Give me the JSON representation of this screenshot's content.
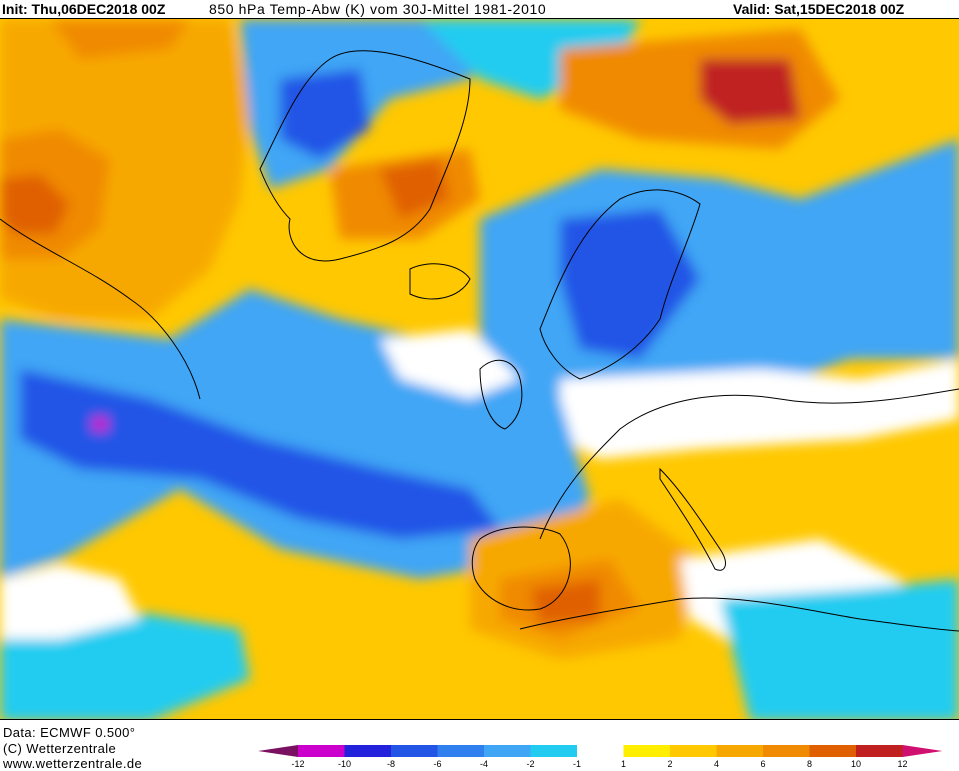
{
  "header": {
    "init": "Init: Thu,06DEC2018 00Z",
    "title": "850 hPa Temp-Abw (K) vom 30J-Mittel 1981-2010",
    "valid": "Valid: Sat,15DEC2018 00Z"
  },
  "footer": {
    "data_source": "Data: ECMWF  0.500°",
    "copyright": "(C) Wetterzentrale",
    "website": "www.wetterzentrale.de"
  },
  "legend": {
    "labels": [
      "-12",
      "-10",
      "-8",
      "-6",
      "-4",
      "-2",
      "-1",
      "1",
      "2",
      "4",
      "6",
      "8",
      "10",
      "12"
    ],
    "colors": [
      "#cc00cc",
      "#2222dd",
      "#2255e6",
      "#2f80ee",
      "#3fa6f5",
      "#22ccf0",
      "#ffffff",
      "#ffee00",
      "#ffc800",
      "#f7a800",
      "#f08a00",
      "#e06000",
      "#c02020"
    ],
    "low_arrow_color": "#7a1060",
    "high_arrow_color": "#d01070"
  },
  "map": {
    "region": "North Atlantic and Europe",
    "palette": {
      "strong_cold": "#cc00cc",
      "very_cold": "#2255e6",
      "cold": "#3fa6f5",
      "cool": "#22ccf0",
      "neutral": "#ffffff",
      "slightly_warm": "#ffee00",
      "warm": "#ffc800",
      "warmer": "#f7a800",
      "hot": "#f08a00",
      "very_hot": "#e06000",
      "extreme": "#c02020"
    }
  }
}
